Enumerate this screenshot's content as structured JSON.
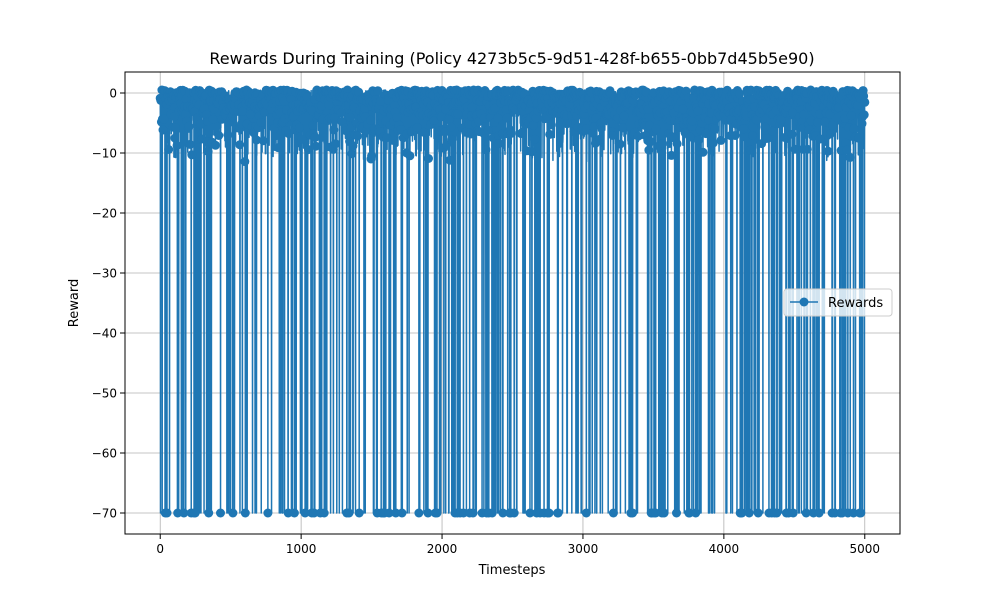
{
  "chart_data": {
    "type": "line",
    "title": "Rewards During Training (Policy 4273b5c5-9d51-428f-b655-0bb7d45b5e90)",
    "xlabel": "Timesteps",
    "ylabel": "Reward",
    "xlim": [
      -250,
      5250
    ],
    "ylim": [
      -73.5,
      3.5
    ],
    "xticks": [
      0,
      1000,
      2000,
      3000,
      4000,
      5000
    ],
    "xtick_labels": [
      "0",
      "1000",
      "2000",
      "3000",
      "4000",
      "5000"
    ],
    "yticks": [
      0,
      -10,
      -20,
      -30,
      -40,
      -50,
      -60,
      -70
    ],
    "ytick_labels": [
      "0",
      "−10",
      "−20",
      "−30",
      "−40",
      "−50",
      "−60",
      "−70"
    ],
    "grid": true,
    "legend_position": "center-right",
    "series": [
      {
        "name": "Rewards",
        "color": "#1f77b4",
        "marker": "circle",
        "x_range": [
          0,
          5000
        ],
        "n_points": 5001,
        "typical_range": [
          -12,
          0
        ],
        "minimum": -70,
        "maximum": 0.5,
        "failure_value": -70,
        "approx_failure_rate": 0.07,
        "summary": "Dense line of rewards oscillating mostly between about -12 and 0, with frequent drops to -70 across all timesteps"
      }
    ]
  }
}
